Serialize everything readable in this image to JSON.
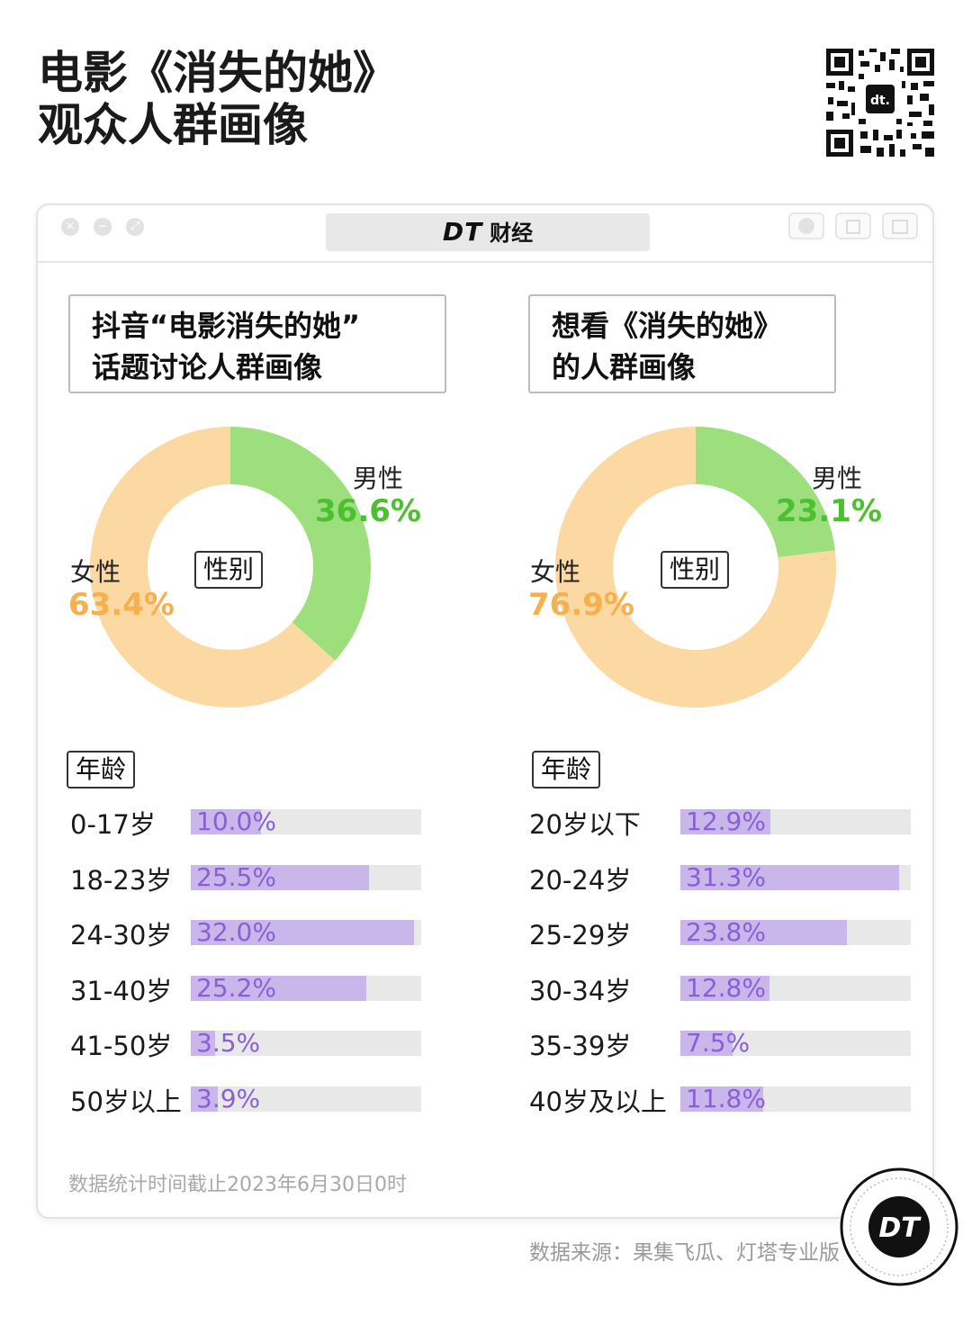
{
  "title": {
    "line1": "电影《消失的她》",
    "line2": "观众人群画像"
  },
  "brand": {
    "mark": "DT",
    "name": "财经"
  },
  "footnote": "数据统计时间截止2023年6月30日0时",
  "source": "数据来源：果集飞瓜、灯塔专业版",
  "colors": {
    "male": "#9ddf7c",
    "female": "#fcd9a3",
    "male_text": "#4cc12f",
    "female_text": "#f6b04d",
    "bar": "#c9b6ea",
    "bar_text": "#8a5fd6"
  },
  "chart_data": [
    {
      "type": "pie",
      "panel_title_line1": "抖音“电影消失的她”",
      "panel_title_line2": "话题讨论人群画像",
      "center_label": "性别",
      "slices": [
        {
          "label": "男性",
          "value": 36.6,
          "display": "36.6%"
        },
        {
          "label": "女性",
          "value": 63.4,
          "display": "63.4%"
        }
      ]
    },
    {
      "type": "pie",
      "panel_title_line1": "想看《消失的她》",
      "panel_title_line2": "的人群画像",
      "center_label": "性别",
      "slices": [
        {
          "label": "男性",
          "value": 23.1,
          "display": "23.1%"
        },
        {
          "label": "女性",
          "value": 76.9,
          "display": "76.9%"
        }
      ]
    },
    {
      "type": "bar",
      "tag": "年龄",
      "categories": [
        "0-17岁",
        "18-23岁",
        "24-30岁",
        "31-40岁",
        "41-50岁",
        "50岁以上"
      ],
      "values": [
        10.0,
        25.5,
        32.0,
        25.2,
        3.5,
        3.9
      ],
      "display": [
        "10.0%",
        "25.5%",
        "32.0%",
        "25.2%",
        "3.5%",
        "3.9%"
      ]
    },
    {
      "type": "bar",
      "tag": "年龄",
      "categories": [
        "20岁以下",
        "20-24岁",
        "25-29岁",
        "30-34岁",
        "35-39岁",
        "40岁及以上"
      ],
      "values": [
        12.9,
        31.3,
        23.8,
        12.8,
        7.5,
        11.8
      ],
      "display": [
        "12.9%",
        "31.3%",
        "23.8%",
        "12.8%",
        "7.5%",
        "11.8%"
      ]
    }
  ]
}
